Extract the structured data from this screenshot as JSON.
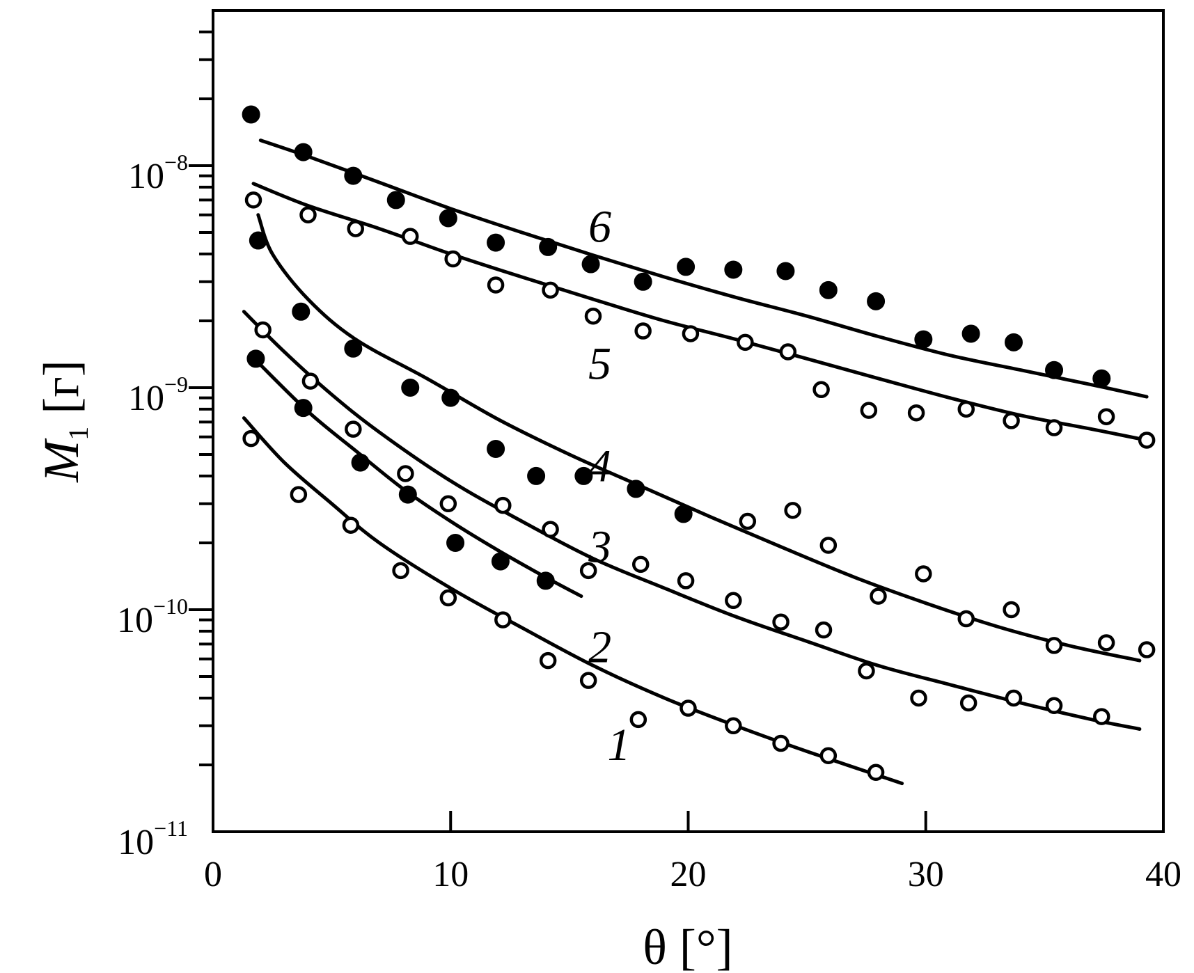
{
  "chart_data": {
    "type": "scatter",
    "xlabel": "θ [°]",
    "ylabel": {
      "symbol": "M",
      "subscript": "1",
      "unit": "[г]"
    },
    "xlim": [
      0,
      40
    ],
    "ylim": [
      1e-11,
      5e-08
    ],
    "yscale": "log",
    "grid": false,
    "x_ticks": [
      "0",
      "10",
      "20",
      "30",
      "40"
    ],
    "y_ticks": [
      {
        "base": "10",
        "exp": "−11",
        "value": 1e-11
      },
      {
        "base": "10",
        "exp": "−10",
        "value": 1e-10
      },
      {
        "base": "10",
        "exp": "−9",
        "value": 1e-09
      },
      {
        "base": "10",
        "exp": "−8",
        "value": 1e-08
      }
    ],
    "series": [
      {
        "label": "1",
        "marker": "open",
        "label_pos": {
          "x": 16.6,
          "y": 2.5e-11
        },
        "points": [
          [
            1.6,
            5.9e-10
          ],
          [
            3.6,
            3.3e-10
          ],
          [
            5.8,
            2.4e-10
          ],
          [
            7.9,
            1.5e-10
          ],
          [
            9.9,
            1.13e-10
          ],
          [
            12.2,
            9e-11
          ],
          [
            14.1,
            5.9e-11
          ],
          [
            15.8,
            4.8e-11
          ],
          [
            17.9,
            3.2e-11
          ],
          [
            20.0,
            3.6e-11
          ],
          [
            21.9,
            3e-11
          ],
          [
            23.9,
            2.5e-11
          ],
          [
            25.9,
            2.2e-11
          ],
          [
            27.9,
            1.85e-11
          ]
        ],
        "curve": [
          [
            1.3,
            7.3e-10
          ],
          [
            3,
            4.6e-10
          ],
          [
            5,
            3e-10
          ],
          [
            7,
            2e-10
          ],
          [
            10,
            1.25e-10
          ],
          [
            13,
            8.3e-11
          ],
          [
            16,
            5.6e-11
          ],
          [
            19,
            4e-11
          ],
          [
            22,
            3e-11
          ],
          [
            25,
            2.3e-11
          ],
          [
            29,
            1.65e-11
          ]
        ]
      },
      {
        "label": "2",
        "marker": "filled",
        "label_pos": {
          "x": 15.8,
          "y": 6.9e-11
        },
        "points": [
          [
            1.8,
            1.35e-09
          ],
          [
            3.8,
            8.1e-10
          ],
          [
            6.2,
            4.6e-10
          ],
          [
            8.2,
            3.3e-10
          ],
          [
            10.2,
            2e-10
          ],
          [
            12.1,
            1.65e-10
          ],
          [
            14.0,
            1.35e-10
          ]
        ],
        "curve": [
          [
            1.8,
            1.33e-09
          ],
          [
            4,
            7.8e-10
          ],
          [
            6,
            5.2e-10
          ],
          [
            8,
            3.5e-10
          ],
          [
            10,
            2.5e-10
          ],
          [
            12,
            1.85e-10
          ],
          [
            14,
            1.4e-10
          ],
          [
            15.5,
            1.15e-10
          ]
        ]
      },
      {
        "label": "3",
        "marker": "open",
        "label_pos": {
          "x": 15.8,
          "y": 1.95e-10
        },
        "points": [
          [
            2.1,
            1.82e-09
          ],
          [
            4.1,
            1.07e-09
          ],
          [
            5.9,
            6.5e-10
          ],
          [
            8.1,
            4.1e-10
          ],
          [
            9.9,
            3e-10
          ],
          [
            12.2,
            2.95e-10
          ],
          [
            14.2,
            2.3e-10
          ],
          [
            15.8,
            1.5e-10
          ],
          [
            18.0,
            1.6e-10
          ],
          [
            19.9,
            1.35e-10
          ],
          [
            21.9,
            1.1e-10
          ],
          [
            23.9,
            8.8e-11
          ],
          [
            25.7,
            8.1e-11
          ],
          [
            27.5,
            5.3e-11
          ],
          [
            29.7,
            4e-11
          ],
          [
            31.8,
            3.8e-11
          ],
          [
            33.7,
            4e-11
          ],
          [
            35.4,
            3.7e-11
          ],
          [
            37.4,
            3.3e-11
          ]
        ],
        "curve": [
          [
            1.3,
            2.2e-09
          ],
          [
            3,
            1.45e-09
          ],
          [
            5,
            9.3e-10
          ],
          [
            7,
            6.3e-10
          ],
          [
            10,
            3.8e-10
          ],
          [
            13,
            2.5e-10
          ],
          [
            16,
            1.7e-10
          ],
          [
            19,
            1.25e-10
          ],
          [
            22,
            9.3e-11
          ],
          [
            25,
            7.2e-11
          ],
          [
            28,
            5.6e-11
          ],
          [
            31,
            4.6e-11
          ],
          [
            34,
            3.8e-11
          ],
          [
            37,
            3.2e-11
          ],
          [
            39,
            2.9e-11
          ]
        ]
      },
      {
        "label": "4",
        "marker": "filled",
        "label_pos": {
          "x": 15.8,
          "y": 4.5e-10
        },
        "points": [
          [
            1.9,
            4.6e-09
          ],
          [
            3.7,
            2.2e-09
          ],
          [
            5.9,
            1.5e-09
          ],
          [
            8.3,
            1e-09
          ],
          [
            10.0,
            9e-10
          ],
          [
            11.9,
            5.3e-10
          ],
          [
            13.6,
            4e-10
          ],
          [
            15.6,
            4e-10
          ],
          [
            17.8,
            3.5e-10
          ],
          [
            19.8,
            2.7e-10
          ]
        ],
        "points_open": [
          [
            22.5,
            2.5e-10
          ],
          [
            24.4,
            2.8e-10
          ],
          [
            25.9,
            1.95e-10
          ],
          [
            28.0,
            1.15e-10
          ],
          [
            29.9,
            1.45e-10
          ],
          [
            31.7,
            9.1e-11
          ],
          [
            33.6,
            1e-10
          ],
          [
            35.4,
            6.9e-11
          ],
          [
            37.6,
            7.1e-11
          ],
          [
            39.3,
            6.6e-11
          ]
        ],
        "curve": [
          [
            1.9,
            6e-09
          ],
          [
            2.5,
            4e-09
          ],
          [
            4,
            2.5e-09
          ],
          [
            6,
            1.65e-09
          ],
          [
            9,
            1.1e-09
          ],
          [
            12,
            7.2e-10
          ],
          [
            15,
            5e-10
          ],
          [
            18,
            3.6e-10
          ],
          [
            21,
            2.6e-10
          ],
          [
            24,
            1.9e-10
          ],
          [
            27,
            1.4e-10
          ],
          [
            30,
            1.07e-10
          ],
          [
            33,
            8.4e-11
          ],
          [
            36,
            6.9e-11
          ],
          [
            39,
            5.9e-11
          ]
        ]
      },
      {
        "label": "5",
        "marker": "open",
        "label_pos": {
          "x": 15.8,
          "y": 1.3e-09
        },
        "points": [
          [
            1.7,
            7e-09
          ],
          [
            4.0,
            6e-09
          ],
          [
            6.0,
            5.2e-09
          ],
          [
            8.3,
            4.8e-09
          ],
          [
            10.1,
            3.8e-09
          ],
          [
            11.9,
            2.9e-09
          ],
          [
            14.2,
            2.75e-09
          ],
          [
            16.0,
            2.1e-09
          ],
          [
            18.1,
            1.8e-09
          ],
          [
            20.1,
            1.75e-09
          ],
          [
            22.4,
            1.6e-09
          ],
          [
            24.2,
            1.45e-09
          ],
          [
            25.6,
            9.8e-10
          ],
          [
            27.6,
            7.9e-10
          ],
          [
            29.6,
            7.7e-10
          ],
          [
            31.7,
            8e-10
          ],
          [
            33.6,
            7.1e-10
          ],
          [
            35.4,
            6.6e-10
          ],
          [
            37.6,
            7.4e-10
          ],
          [
            39.3,
            5.8e-10
          ]
        ],
        "curve": [
          [
            1.7,
            8.3e-09
          ],
          [
            4,
            6.6e-09
          ],
          [
            7,
            5.2e-09
          ],
          [
            10,
            4e-09
          ],
          [
            13,
            3.15e-09
          ],
          [
            16,
            2.5e-09
          ],
          [
            19,
            2e-09
          ],
          [
            22,
            1.65e-09
          ],
          [
            25,
            1.35e-09
          ],
          [
            28,
            1.1e-09
          ],
          [
            31,
            9e-10
          ],
          [
            34,
            7.5e-10
          ],
          [
            37,
            6.5e-10
          ],
          [
            39.3,
            5.8e-10
          ]
        ]
      },
      {
        "label": "6",
        "marker": "filled",
        "label_pos": {
          "x": 15.8,
          "y": 5.4e-09
        },
        "points": [
          [
            1.6,
            1.7e-08
          ],
          [
            3.8,
            1.15e-08
          ],
          [
            5.9,
            9e-09
          ],
          [
            7.7,
            7e-09
          ],
          [
            9.9,
            5.8e-09
          ],
          [
            11.9,
            4.5e-09
          ],
          [
            14.1,
            4.3e-09
          ],
          [
            15.9,
            3.6e-09
          ],
          [
            18.1,
            3e-09
          ],
          [
            19.9,
            3.5e-09
          ],
          [
            21.9,
            3.4e-09
          ],
          [
            24.1,
            3.35e-09
          ],
          [
            25.9,
            2.75e-09
          ],
          [
            27.9,
            2.45e-09
          ],
          [
            29.9,
            1.65e-09
          ],
          [
            31.9,
            1.75e-09
          ],
          [
            33.7,
            1.6e-09
          ],
          [
            35.4,
            1.2e-09
          ],
          [
            37.4,
            1.1e-09
          ]
        ],
        "curve": [
          [
            2,
            1.3e-08
          ],
          [
            4,
            1.1e-08
          ],
          [
            7,
            8.4e-09
          ],
          [
            10,
            6.4e-09
          ],
          [
            13,
            5e-09
          ],
          [
            16,
            3.95e-09
          ],
          [
            19,
            3.15e-09
          ],
          [
            22,
            2.55e-09
          ],
          [
            25,
            2.1e-09
          ],
          [
            28,
            1.7e-09
          ],
          [
            31,
            1.4e-09
          ],
          [
            34,
            1.2e-09
          ],
          [
            37,
            1.03e-09
          ],
          [
            39.3,
            9.1e-10
          ]
        ]
      }
    ]
  }
}
